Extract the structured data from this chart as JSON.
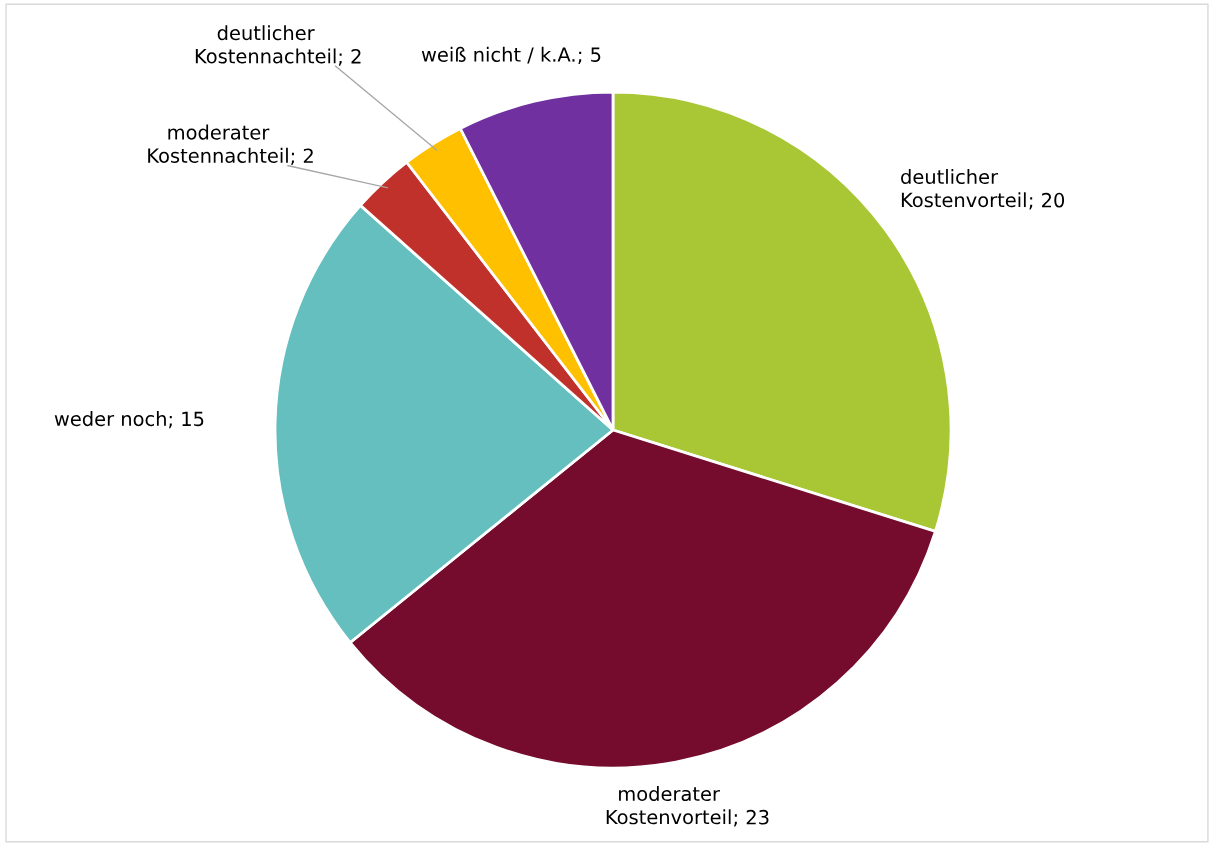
{
  "chart_data": {
    "type": "pie",
    "categories": [
      "deutlicher\nKostenvorteil",
      "moderater\nKostenvorteil",
      "weder noch",
      "moderater\nKostennachteil",
      "deutlicher\nKostennachteil",
      "weiß nicht / k.A."
    ],
    "values": [
      20,
      23,
      15,
      2,
      2,
      5
    ],
    "colors": [
      "#a9c734",
      "#750b2d",
      "#66bfbf",
      "#c0312b",
      "#ffc000",
      "#7030a0"
    ],
    "value_labels": [
      "; 20",
      "; 23",
      "; 15",
      "; 2",
      "; 2",
      "; 5"
    ]
  }
}
